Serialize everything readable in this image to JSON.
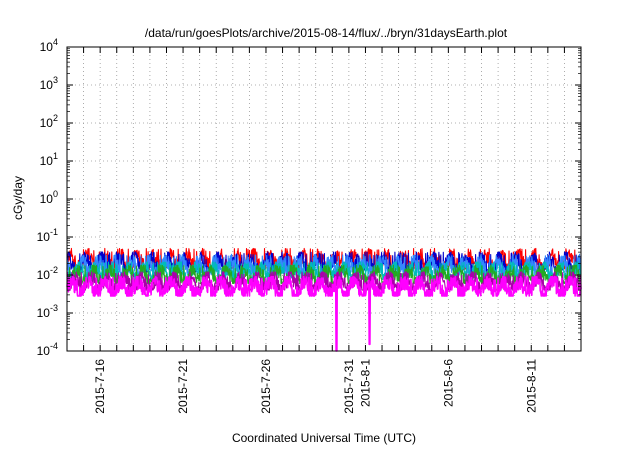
{
  "chart_data": {
    "type": "line",
    "title": "/data/run/goesPlots/archive/2015-08-14/flux/../bryn/31daysEarth.plot",
    "xlabel": "Coordinated Universal Time (UTC)",
    "ylabel": "cGy/day",
    "yscale": "log",
    "ylim": [
      0.0001,
      10000
    ],
    "y_ticks": [
      {
        "value": 0.0001,
        "exp": "-4"
      },
      {
        "value": 0.001,
        "exp": "-3"
      },
      {
        "value": 0.01,
        "exp": "-2"
      },
      {
        "value": 0.1,
        "exp": "-1"
      },
      {
        "value": 1,
        "exp": "0"
      },
      {
        "value": 10,
        "exp": "1"
      },
      {
        "value": 100,
        "exp": "2"
      },
      {
        "value": 1000,
        "exp": "3"
      },
      {
        "value": 10000,
        "exp": "4"
      }
    ],
    "y_tick_base": "10",
    "xlim": [
      "2015-07-14",
      "2015-08-14"
    ],
    "x_ticks": [
      "2015-7-16",
      "2015-7-21",
      "2015-7-26",
      "2015-7-31",
      "2015-8-1",
      "2015-8-6",
      "2015-8-11"
    ],
    "grid": true,
    "legend": "none",
    "series": [
      {
        "color": "#ff0000",
        "base": 0.022,
        "lo": 0.014,
        "hi": 0.05,
        "seed": 11
      },
      {
        "color": "#0000cc",
        "base": 0.018,
        "lo": 0.012,
        "hi": 0.04,
        "seed": 23
      },
      {
        "color": "#3388ff",
        "base": 0.015,
        "lo": 0.01,
        "hi": 0.035,
        "seed": 37
      },
      {
        "color": "#00bbbb",
        "base": 0.011,
        "lo": 0.007,
        "hi": 0.022,
        "seed": 41
      },
      {
        "color": "#22aa22",
        "base": 0.009,
        "lo": 0.006,
        "hi": 0.018,
        "seed": 53
      },
      {
        "color": "#aa00aa",
        "base": 0.006,
        "lo": 0.004,
        "hi": 0.012,
        "seed": 67
      },
      {
        "color": "#ff00ff",
        "base": 0.0045,
        "lo": 0.0028,
        "hi": 0.009,
        "seed": 79,
        "dips": [
          {
            "date": "2015-07-30T06:00",
            "value": 0.0001
          },
          {
            "date": "2015-08-01T06:00",
            "value": 0.00015
          }
        ]
      }
    ]
  }
}
